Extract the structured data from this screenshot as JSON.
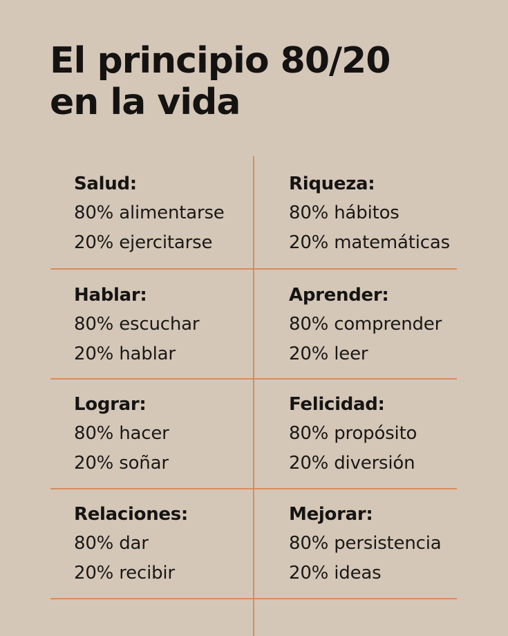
{
  "title": {
    "line1": "El principio 80/20",
    "line2": "en la vida"
  },
  "cells": [
    {
      "heading": "Salud:",
      "line1": "80% alimentarse",
      "line2": "20% ejercitarse"
    },
    {
      "heading": "Riqueza:",
      "line1": "80% hábitos",
      "line2": "20% matemáticas"
    },
    {
      "heading": "Hablar:",
      "line1": "80% escuchar",
      "line2": "20% hablar"
    },
    {
      "heading": "Aprender:",
      "line1": "80% comprender",
      "line2": "20% leer"
    },
    {
      "heading": "Lograr:",
      "line1": "80% hacer",
      "line2": "20% soñar"
    },
    {
      "heading": "Felicidad:",
      "line1": "80% propósito",
      "line2": "20% diversión"
    },
    {
      "heading": "Relaciones:",
      "line1": "80% dar",
      "line2": "20% recibir"
    },
    {
      "heading": "Mejorar:",
      "line1": "80% persistencia",
      "line2": "20% ideas"
    }
  ],
  "colors": {
    "background": "#d4c7b8",
    "divider": "#d98b5c",
    "text": "#161412"
  }
}
